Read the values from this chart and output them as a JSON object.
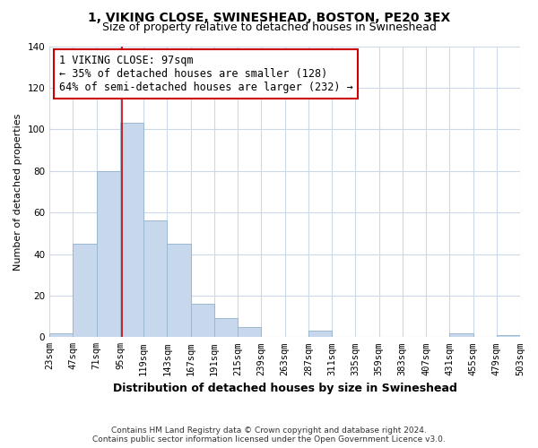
{
  "title": "1, VIKING CLOSE, SWINESHEAD, BOSTON, PE20 3EX",
  "subtitle": "Size of property relative to detached houses in Swineshead",
  "xlabel": "Distribution of detached houses by size in Swineshead",
  "ylabel": "Number of detached properties",
  "footnote1": "Contains HM Land Registry data © Crown copyright and database right 2024.",
  "footnote2": "Contains public sector information licensed under the Open Government Licence v3.0.",
  "bar_color": "#c8d8ec",
  "bar_edge_color": "#9ab8d0",
  "annotation_box_color": "#cc0000",
  "vline_color": "#cc0000",
  "annotation_text_line1": "1 VIKING CLOSE: 97sqm",
  "annotation_text_line2": "← 35% of detached houses are smaller (128)",
  "annotation_text_line3": "64% of semi-detached houses are larger (232) →",
  "property_size": 97,
  "bin_edges": [
    23,
    47,
    71,
    95,
    119,
    143,
    167,
    191,
    215,
    239,
    263,
    287,
    311,
    335,
    359,
    383,
    407,
    431,
    455,
    479,
    503
  ],
  "bin_counts": [
    2,
    45,
    80,
    103,
    56,
    45,
    16,
    9,
    5,
    0,
    0,
    3,
    0,
    0,
    0,
    0,
    0,
    2,
    0,
    1
  ],
  "ylim": [
    0,
    140
  ],
  "yticks": [
    0,
    20,
    40,
    60,
    80,
    100,
    120,
    140
  ],
  "grid_color": "#ccd9e8",
  "background_color": "#ffffff",
  "title_fontsize": 10,
  "subtitle_fontsize": 9,
  "ylabel_fontsize": 8,
  "xlabel_fontsize": 9,
  "tick_fontsize": 7.5,
  "annotation_fontsize": 8.5,
  "footnote_fontsize": 6.5
}
